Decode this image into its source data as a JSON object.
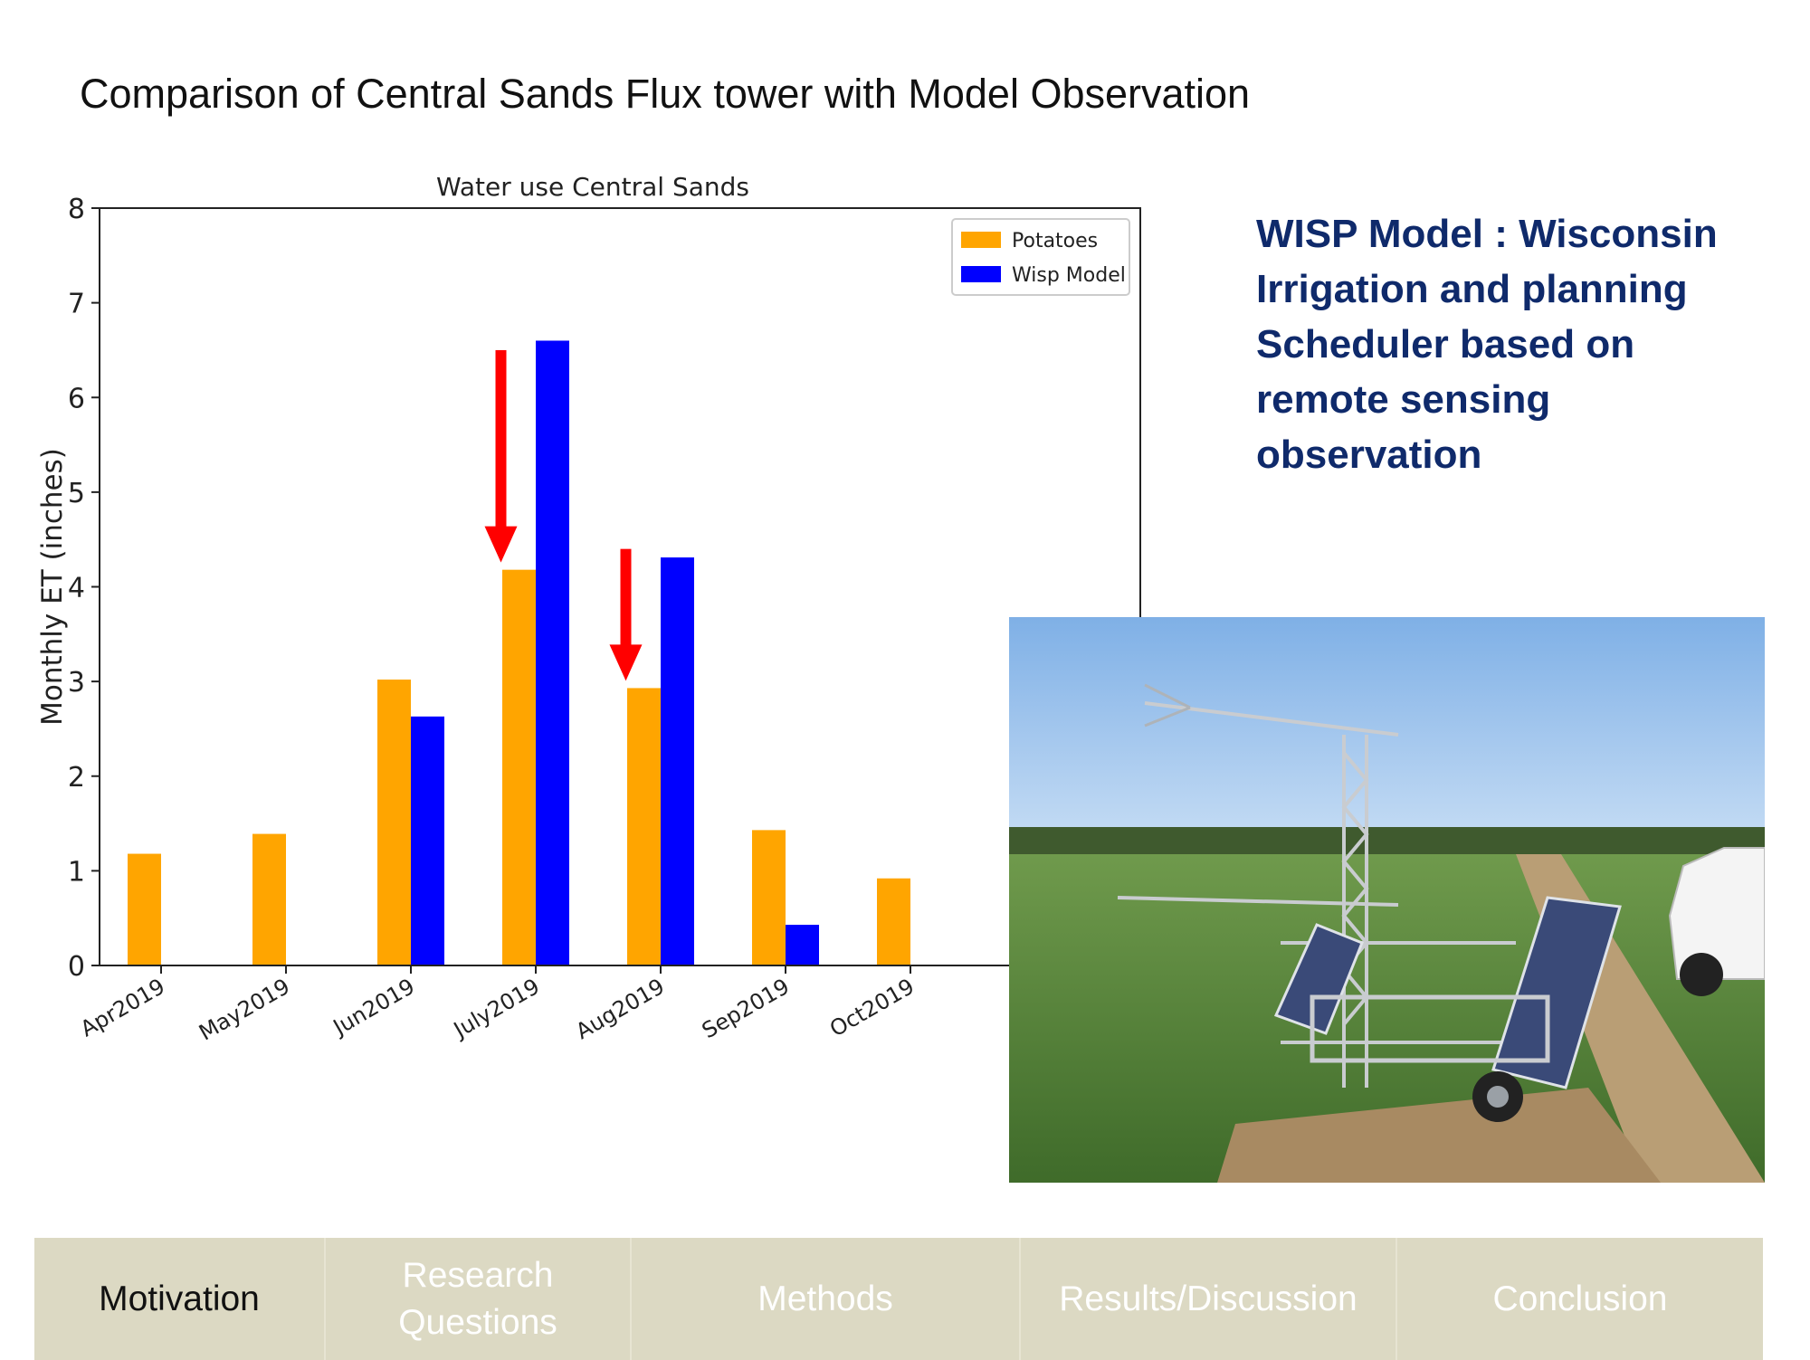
{
  "slide": {
    "title": "Comparison of Central Sands Flux tower with Model Observation",
    "wisp_description": "WISP Model : Wisconsin Irrigation and planning Scheduler  based on remote sensing observation"
  },
  "colors": {
    "potatoes": "#ffa500",
    "wisp": "#0000ff",
    "arrow": "#ff0000",
    "title_text": "#0f2a6b"
  },
  "chart_data": {
    "type": "bar",
    "title": "Water use Central Sands",
    "xlabel": "",
    "ylabel": "Monthly ET (inches)",
    "ylim": [
      0,
      8
    ],
    "yticks": [
      0,
      1,
      2,
      3,
      4,
      5,
      6,
      7,
      8
    ],
    "categories": [
      "Apr2019",
      "May2019",
      "Jun2019",
      "July2019",
      "Aug2019",
      "Sep2019",
      "Oct2019"
    ],
    "series": [
      {
        "name": "Potatoes",
        "values": [
          1.18,
          1.39,
          3.02,
          4.18,
          2.93,
          1.43,
          0.92
        ]
      },
      {
        "name": "Wisp Model",
        "values": [
          null,
          null,
          2.63,
          6.6,
          4.31,
          0.43,
          null
        ]
      }
    ],
    "legend_position": "top-right",
    "grid": false,
    "annotations": [
      {
        "type": "down-arrow",
        "category": "July2019",
        "from": 6.5,
        "to": 4.2
      },
      {
        "type": "down-arrow",
        "category": "Aug2019",
        "from": 4.4,
        "to": 2.95
      }
    ]
  },
  "nav": {
    "tabs": [
      {
        "label": "Motivation",
        "active": true
      },
      {
        "label": "Research Questions",
        "active": false
      },
      {
        "label": "Methods",
        "active": false
      },
      {
        "label": "Results/Discussion",
        "active": false
      },
      {
        "label": "Conclusion",
        "active": false
      }
    ]
  }
}
